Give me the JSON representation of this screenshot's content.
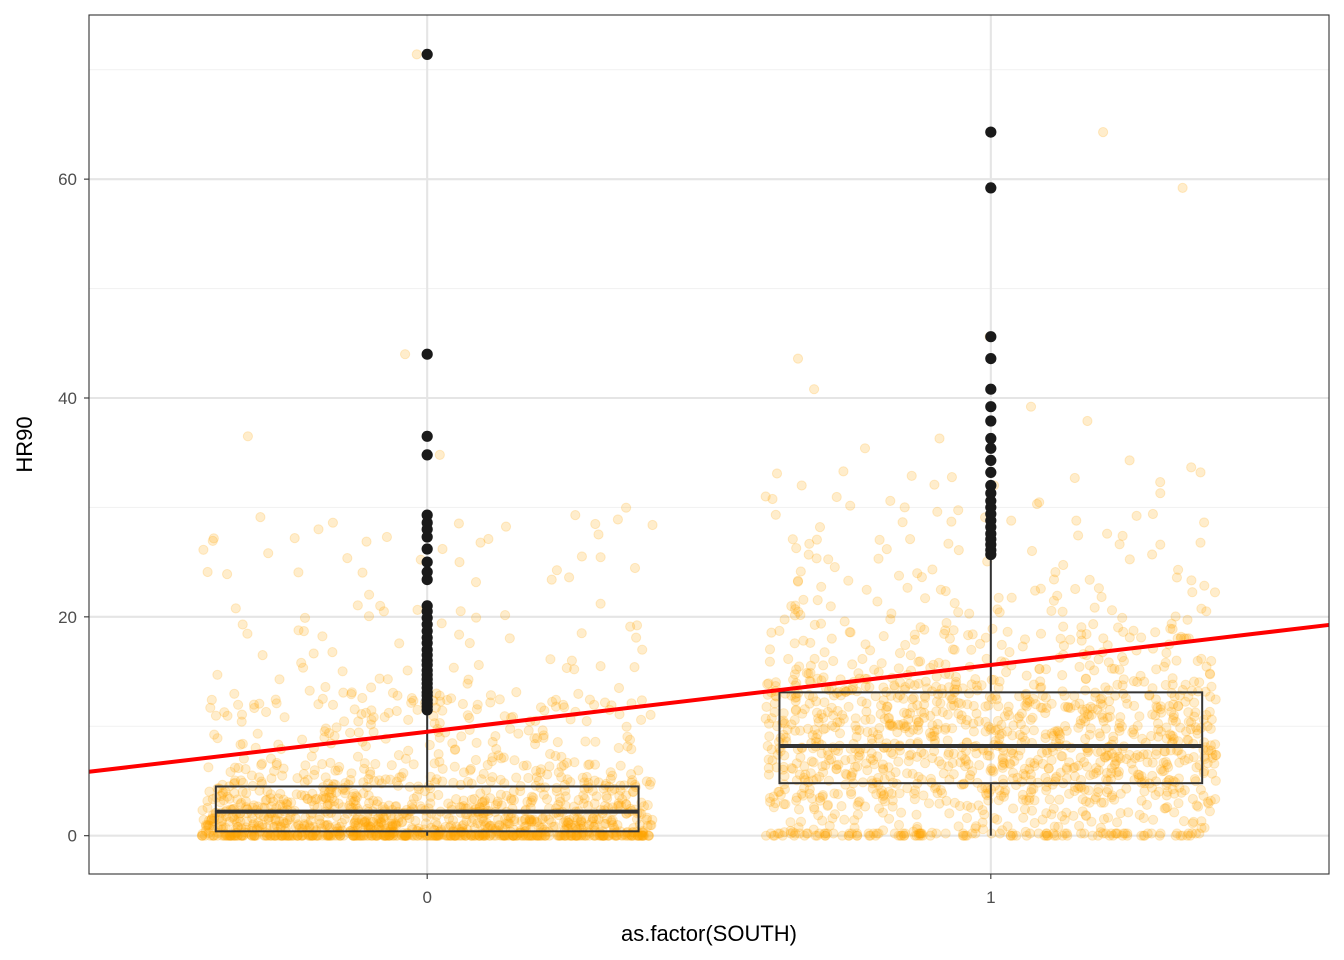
{
  "chart_data": {
    "type": "boxplot",
    "xlabel": "as.factor(SOUTH)",
    "ylabel": "HR90",
    "categories": [
      "0",
      "1"
    ],
    "ylim": [
      -3.5,
      75
    ],
    "y_ticks": [
      0,
      20,
      40,
      60
    ],
    "grid": true,
    "theme": "bw",
    "colors": {
      "jitter": "#ffa500",
      "outlier": "#1a1a1a",
      "box_stroke": "#333333",
      "regression": "#ff0000",
      "grid_major": "#e5e5e5",
      "grid_minor": "#f2f2f2",
      "panel_border": "#333333"
    },
    "boxes": [
      {
        "category": "0",
        "lower_whisker": 0,
        "q1": 0.4,
        "median": 2.2,
        "q3": 4.5,
        "upper_whisker": 11.2,
        "outliers": [
          11.5,
          11.8,
          12.1,
          12.4,
          12.8,
          13.1,
          13.5,
          13.9,
          14.3,
          14.7,
          15.1,
          15.6,
          16.0,
          16.5,
          17.0,
          17.6,
          18.1,
          18.7,
          19.3,
          19.9,
          20.5,
          21.0,
          23.4,
          24.1,
          25.0,
          26.2,
          27.3,
          28.0,
          28.6,
          29.3,
          34.8,
          36.5,
          44.0,
          71.4
        ]
      },
      {
        "category": "1",
        "lower_whisker": 0,
        "q1": 4.8,
        "median": 8.2,
        "q3": 13.1,
        "upper_whisker": 25.4,
        "outliers": [
          25.7,
          26.1,
          26.6,
          27.1,
          27.6,
          28.2,
          28.8,
          29.4,
          30.0,
          30.6,
          31.3,
          32.0,
          33.2,
          34.3,
          35.4,
          36.3,
          37.9,
          39.2,
          40.8,
          43.6,
          45.6,
          59.2,
          64.3
        ]
      }
    ],
    "regression_line": {
      "intercept": 9.5,
      "slope": 6.1
    },
    "jitter_summary": [
      {
        "category": "0",
        "n": 1400,
        "max": 71.4
      },
      {
        "category": "1",
        "n": 1400,
        "max": 64.3
      }
    ]
  }
}
